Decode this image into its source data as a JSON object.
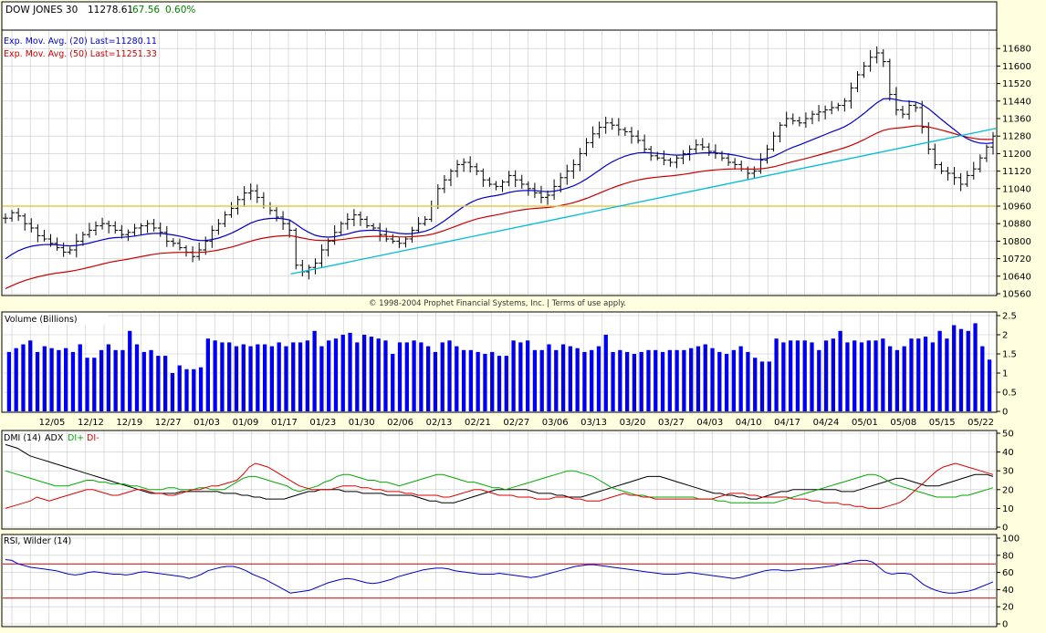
{
  "header": {
    "symbol": "DOW JONES 30",
    "last": "11278.61",
    "change": "67.56",
    "pct": "0.60%"
  },
  "legends": {
    "ema20": "Exp. Mov. Avg. (20) Last=11280.11",
    "ema50": "Exp. Mov. Avg. (50) Last=11251.33"
  },
  "copyright": "© 1998-2004 Prophet Financial Systems, Inc. | Terms of use apply.",
  "panels": {
    "volume_title": "Volume (Billions)",
    "dmi_title": "DMI (14)",
    "adx_label": "ADX",
    "diplus_label": "DI+",
    "diminus_label": "DI-",
    "rsi_title": "RSI, Wilder (14)"
  },
  "colors": {
    "background": "#ffffe0",
    "grid": "#c8c8c8",
    "price_bars": "#000000",
    "ema20": "#0000cc",
    "ema50": "#cc0000",
    "trendline": "#00bcd4",
    "support_line": "#e6c84a",
    "volume": "#0000ee",
    "adx": "#000000",
    "di_plus": "#00aa00",
    "di_minus": "#dd0000",
    "rsi": "#0000cc",
    "rsi_bands": "#cc0000",
    "header_change": "#008000"
  },
  "chart_data": [
    {
      "type": "ohlc",
      "ylim": [
        10560,
        11760
      ],
      "yticks": [
        "11680",
        "11600",
        "11520",
        "11440",
        "11360",
        "11280",
        "11200",
        "11120",
        "11040",
        "10960",
        "10880",
        "10800",
        "10720",
        "10640",
        "10560"
      ],
      "closes": [
        10905,
        10930,
        10915,
        10880,
        10860,
        10825,
        10810,
        10790,
        10770,
        10750,
        10760,
        10800,
        10830,
        10850,
        10870,
        10880,
        10870,
        10850,
        10830,
        10840,
        10860,
        10870,
        10880,
        10860,
        10840,
        10800,
        10790,
        10770,
        10750,
        10730,
        10760,
        10800,
        10850,
        10880,
        10920,
        10950,
        10990,
        11020,
        11030,
        11000,
        10960,
        10940,
        10910,
        10880,
        10850,
        10690,
        10660,
        10680,
        10700,
        10760,
        10800,
        10840,
        10880,
        10900,
        10920,
        10900,
        10870,
        10860,
        10830,
        10810,
        10800,
        10790,
        10810,
        10850,
        10880,
        10900,
        10960,
        11040,
        11080,
        11120,
        11150,
        11160,
        11140,
        11120,
        11080,
        11060,
        11050,
        11070,
        11100,
        11080,
        11060,
        11040,
        11020,
        11000,
        11010,
        11050,
        11090,
        11120,
        11150,
        11200,
        11250,
        11290,
        11320,
        11340,
        11330,
        11310,
        11300,
        11280,
        11260,
        11220,
        11190,
        11180,
        11170,
        11160,
        11180,
        11200,
        11220,
        11240,
        11230,
        11210,
        11200,
        11180,
        11160,
        11150,
        11130,
        11110,
        11120,
        11170,
        11220,
        11280,
        11330,
        11360,
        11350,
        11340,
        11360,
        11380,
        11390,
        11400,
        11410,
        11420,
        11440,
        11500,
        11560,
        11600,
        11640,
        11660,
        11620,
        11470,
        11400,
        11380,
        11420,
        11410,
        11320,
        11220,
        11150,
        11120,
        11110,
        11090,
        11060,
        11100,
        11130,
        11180,
        11230,
        11280
      ],
      "ema20_last": 11280.11,
      "ema50_last": 11251.33,
      "support_level": 10960,
      "trendline": [
        [
          0.29,
          10650
        ],
        [
          1.0,
          11315
        ]
      ]
    },
    {
      "type": "bar",
      "title": "Volume (Billions)",
      "ylim": [
        0,
        2.5
      ],
      "yticks": [
        "2.5",
        "2",
        "1.5",
        "1",
        "0.5",
        "0"
      ],
      "xticks": [
        "12/05",
        "12/12",
        "12/19",
        "12/27",
        "01/03",
        "01/09",
        "01/17",
        "01/23",
        "01/30",
        "02/06",
        "02/13",
        "02/21",
        "02/27",
        "03/06",
        "03/13",
        "03/20",
        "03/27",
        "04/03",
        "04/10",
        "04/17",
        "04/24",
        "05/01",
        "05/08",
        "05/15",
        "05/22"
      ],
      "values": [
        1.55,
        1.65,
        1.75,
        1.85,
        1.55,
        1.7,
        1.65,
        1.6,
        1.65,
        1.55,
        1.75,
        1.4,
        1.4,
        1.6,
        1.75,
        1.6,
        1.6,
        2.1,
        1.75,
        1.55,
        1.6,
        1.45,
        1.45,
        1.0,
        1.2,
        1.1,
        1.1,
        1.15,
        1.9,
        1.85,
        1.8,
        1.8,
        1.7,
        1.75,
        1.7,
        1.75,
        1.75,
        1.7,
        1.8,
        1.7,
        1.8,
        1.8,
        1.85,
        2.1,
        1.7,
        1.85,
        1.9,
        2.0,
        2.05,
        1.8,
        2.0,
        1.95,
        1.9,
        1.85,
        1.5,
        1.8,
        1.8,
        1.85,
        1.8,
        1.7,
        1.55,
        1.8,
        1.85,
        1.7,
        1.6,
        1.6,
        1.55,
        1.5,
        1.55,
        1.45,
        1.45,
        1.85,
        1.8,
        1.85,
        1.6,
        1.6,
        1.75,
        1.6,
        1.75,
        1.7,
        1.65,
        1.55,
        1.6,
        1.7,
        2.0,
        1.55,
        1.6,
        1.55,
        1.5,
        1.55,
        1.6,
        1.6,
        1.55,
        1.6,
        1.6,
        1.6,
        1.65,
        1.7,
        1.75,
        1.65,
        1.55,
        1.5,
        1.6,
        1.7,
        1.55,
        1.4,
        1.3,
        1.3,
        1.9,
        1.8,
        1.85,
        1.85,
        1.85,
        1.8,
        1.6,
        1.85,
        1.9,
        2.1,
        1.8,
        1.85,
        1.8,
        1.85,
        1.85,
        1.9,
        1.7,
        1.6,
        1.7,
        1.9,
        1.9,
        1.95,
        1.8,
        2.1,
        1.9,
        2.25,
        2.15,
        2.1,
        2.3,
        1.7,
        1.35
      ]
    },
    {
      "type": "line",
      "title": "DMI (14)",
      "ylim": [
        0,
        50
      ],
      "yticks": [
        "50",
        "40",
        "30",
        "20",
        "10",
        "0"
      ],
      "series": [
        {
          "name": "ADX",
          "values": [
            44,
            43,
            42,
            40,
            38,
            37,
            36,
            35,
            34,
            33,
            32,
            31,
            30,
            29,
            28,
            27,
            26,
            25,
            24,
            23,
            22,
            21,
            20,
            19,
            18,
            18,
            18,
            18,
            18,
            19,
            19,
            19,
            19,
            19,
            19,
            19,
            18,
            18,
            18,
            17,
            17,
            16,
            16,
            15,
            15,
            15,
            15,
            16,
            17,
            18,
            19,
            19,
            20,
            20,
            20,
            20,
            19,
            19,
            19,
            18,
            18,
            18,
            18,
            17,
            17,
            17,
            17,
            17,
            16,
            15,
            14,
            14,
            13,
            13,
            13,
            14,
            15,
            16,
            17,
            18,
            19,
            20,
            20,
            20,
            20,
            20,
            20,
            19,
            18,
            18,
            18,
            17,
            17,
            16,
            16,
            16,
            17,
            18,
            19,
            20,
            21,
            22,
            23,
            24,
            25,
            26,
            27,
            27,
            27,
            26,
            25,
            24,
            23,
            22,
            21,
            20,
            19,
            18,
            18,
            17,
            17,
            16,
            16,
            15,
            15,
            16,
            17,
            18,
            19,
            19,
            20,
            20,
            20,
            20,
            20,
            20,
            20,
            20,
            19,
            19,
            19,
            20,
            21,
            22,
            23,
            24,
            25,
            26,
            26,
            25,
            24,
            23,
            22,
            22,
            22,
            23,
            24,
            25,
            26,
            27,
            28,
            28,
            28,
            27
          ]
        },
        {
          "name": "DI+",
          "values": [
            30,
            29,
            28,
            27,
            26,
            25,
            24,
            23,
            22,
            22,
            22,
            23,
            24,
            25,
            25,
            24,
            24,
            23,
            23,
            23,
            22,
            22,
            21,
            20,
            20,
            20,
            21,
            21,
            20,
            20,
            20,
            21,
            21,
            20,
            20,
            20,
            22,
            24,
            26,
            27,
            27,
            26,
            25,
            24,
            23,
            22,
            20,
            19,
            20,
            21,
            22,
            24,
            25,
            27,
            28,
            28,
            27,
            26,
            25,
            25,
            24,
            24,
            23,
            22,
            23,
            24,
            25,
            26,
            27,
            28,
            28,
            27,
            26,
            25,
            24,
            24,
            23,
            22,
            21,
            21,
            20,
            21,
            22,
            23,
            24,
            25,
            26,
            27,
            28,
            29,
            30,
            30,
            29,
            28,
            27,
            25,
            23,
            21,
            20,
            19,
            18,
            17,
            17,
            16,
            16,
            16,
            16,
            16,
            16,
            16,
            16,
            15,
            15,
            15,
            14,
            14,
            13,
            13,
            13,
            13,
            13,
            13,
            13,
            13,
            14,
            15,
            16,
            17,
            18,
            19,
            20,
            21,
            22,
            23,
            24,
            25,
            26,
            27,
            28,
            28,
            27,
            25,
            23,
            22,
            21,
            20,
            19,
            18,
            17,
            16,
            16,
            16,
            16,
            17,
            17,
            18,
            19,
            20,
            21
          ]
        },
        {
          "name": "DI-",
          "values": [
            10,
            11,
            12,
            13,
            14,
            16,
            15,
            14,
            15,
            16,
            17,
            18,
            19,
            20,
            20,
            19,
            18,
            17,
            17,
            18,
            19,
            20,
            20,
            19,
            18,
            18,
            17,
            17,
            18,
            19,
            20,
            20,
            21,
            22,
            22,
            23,
            24,
            25,
            28,
            32,
            34,
            33,
            32,
            30,
            28,
            26,
            24,
            22,
            21,
            20,
            20,
            20,
            20,
            21,
            22,
            22,
            22,
            21,
            21,
            20,
            20,
            19,
            19,
            19,
            18,
            18,
            17,
            17,
            17,
            17,
            16,
            16,
            17,
            18,
            19,
            20,
            20,
            19,
            18,
            17,
            17,
            17,
            16,
            16,
            16,
            15,
            15,
            15,
            16,
            16,
            16,
            15,
            15,
            14,
            14,
            14,
            15,
            16,
            17,
            18,
            17,
            17,
            16,
            16,
            15,
            15,
            15,
            15,
            15,
            15,
            15,
            15,
            15,
            15,
            16,
            17,
            18,
            18,
            18,
            17,
            17,
            16,
            16,
            16,
            16,
            16,
            15,
            15,
            15,
            14,
            14,
            13,
            13,
            13,
            12,
            12,
            11,
            11,
            10,
            10,
            10,
            11,
            12,
            13,
            15,
            18,
            21,
            24,
            27,
            30,
            32,
            33,
            34,
            33,
            32,
            31,
            30,
            29,
            28
          ]
        }
      ]
    },
    {
      "type": "line",
      "title": "RSI, Wilder (14)",
      "ylim": [
        0,
        100
      ],
      "yticks": [
        "100",
        "80",
        "60",
        "40",
        "20",
        "0"
      ],
      "bands": [
        70,
        30
      ],
      "series": [
        {
          "name": "RSI",
          "values": [
            75,
            74,
            70,
            68,
            66,
            65,
            64,
            63,
            62,
            60,
            58,
            57,
            58,
            60,
            61,
            60,
            59,
            58,
            58,
            57,
            58,
            60,
            61,
            60,
            59,
            58,
            57,
            56,
            55,
            53,
            55,
            58,
            62,
            64,
            66,
            67,
            67,
            65,
            62,
            58,
            55,
            52,
            48,
            44,
            40,
            36,
            37,
            38,
            39,
            42,
            45,
            48,
            50,
            52,
            53,
            52,
            50,
            48,
            47,
            48,
            50,
            52,
            55,
            57,
            59,
            61,
            63,
            64,
            65,
            65,
            64,
            62,
            61,
            60,
            59,
            58,
            58,
            58,
            59,
            58,
            57,
            56,
            55,
            54,
            55,
            57,
            59,
            61,
            63,
            65,
            67,
            68,
            69,
            69,
            68,
            67,
            66,
            65,
            64,
            63,
            62,
            61,
            60,
            59,
            58,
            58,
            58,
            59,
            60,
            59,
            58,
            57,
            56,
            55,
            54,
            53,
            54,
            56,
            58,
            60,
            62,
            63,
            63,
            62,
            62,
            63,
            64,
            64,
            65,
            66,
            67,
            68,
            70,
            71,
            73,
            74,
            74,
            72,
            66,
            60,
            58,
            59,
            59,
            58,
            52,
            46,
            42,
            39,
            37,
            36,
            36,
            37,
            38,
            40,
            43,
            46,
            49
          ]
        }
      ]
    }
  ]
}
